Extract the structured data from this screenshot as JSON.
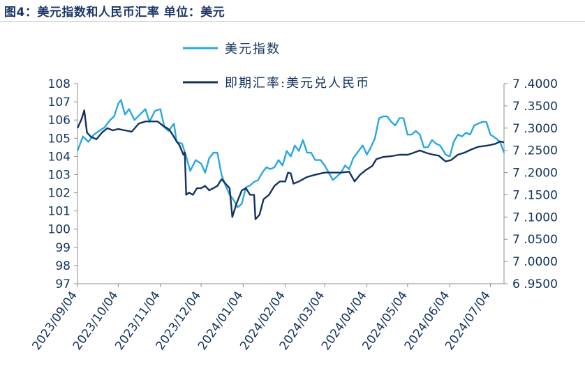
{
  "page_title": "图4：美元指数和人民币汇率 单位：美元",
  "chart_data": {
    "type": "line",
    "title": "",
    "xlabel": "",
    "ylabel": "",
    "dual_axis": true,
    "legend_placement": "top-center",
    "grid": false,
    "x_ticks": [
      "2023/09/04",
      "2023/10/04",
      "2023/11/04",
      "2023/12/04",
      "2024/01/04",
      "2024/02/04",
      "2024/03/04",
      "2024/04/04",
      "2024/05/04",
      "2024/06/04",
      "2024/07/04"
    ],
    "x_range": [
      "2023-09-04",
      "2024-07-14"
    ],
    "ylim_left": [
      97,
      108
    ],
    "y_ticks_left": [
      "97",
      "98",
      "99",
      "100",
      "101",
      "102",
      "103",
      "104",
      "105",
      "106",
      "107",
      "108"
    ],
    "ylim_right": [
      6.95,
      7.4
    ],
    "y_ticks_right": [
      "6.9500",
      "7.0000",
      "7.0500",
      "7.1000",
      "7.1500",
      "7.2000",
      "7.2500",
      "7.3000",
      "7.3500",
      "7.4000"
    ],
    "series": [
      {
        "name": "美元指数",
        "axis": "left",
        "color": "#29a8e0",
        "points": [
          [
            "2023-09-04",
            104.3
          ],
          [
            "2023-09-08",
            105.1
          ],
          [
            "2023-09-12",
            104.8
          ],
          [
            "2023-09-16",
            105.2
          ],
          [
            "2023-09-20",
            105.4
          ],
          [
            "2023-09-24",
            105.6
          ],
          [
            "2023-09-28",
            106.0
          ],
          [
            "2023-10-01",
            106.2
          ],
          [
            "2023-10-04",
            106.9
          ],
          [
            "2023-10-06",
            107.1
          ],
          [
            "2023-10-09",
            106.3
          ],
          [
            "2023-10-12",
            106.6
          ],
          [
            "2023-10-16",
            106.0
          ],
          [
            "2023-10-20",
            106.3
          ],
          [
            "2023-10-24",
            106.6
          ],
          [
            "2023-10-27",
            105.9
          ],
          [
            "2023-10-31",
            106.5
          ],
          [
            "2023-11-04",
            106.6
          ],
          [
            "2023-11-07",
            105.6
          ],
          [
            "2023-11-10",
            105.4
          ],
          [
            "2023-11-14",
            105.8
          ],
          [
            "2023-11-16",
            104.8
          ],
          [
            "2023-11-20",
            104.7
          ],
          [
            "2023-11-23",
            104.0
          ],
          [
            "2023-11-26",
            103.2
          ],
          [
            "2023-11-30",
            103.8
          ],
          [
            "2023-12-04",
            103.6
          ],
          [
            "2023-12-07",
            103.1
          ],
          [
            "2023-12-10",
            103.9
          ],
          [
            "2023-12-13",
            104.2
          ],
          [
            "2023-12-16",
            104.2
          ],
          [
            "2023-12-19",
            103.0
          ],
          [
            "2023-12-22",
            102.4
          ],
          [
            "2023-12-25",
            101.9
          ],
          [
            "2023-12-28",
            101.6
          ],
          [
            "2023-12-31",
            101.2
          ],
          [
            "2024-01-03",
            101.4
          ],
          [
            "2024-01-06",
            102.3
          ],
          [
            "2024-01-09",
            102.4
          ],
          [
            "2024-01-12",
            102.6
          ],
          [
            "2024-01-15",
            102.7
          ],
          [
            "2024-01-18",
            103.1
          ],
          [
            "2024-01-21",
            103.4
          ],
          [
            "2024-01-24",
            103.3
          ],
          [
            "2024-01-27",
            103.4
          ],
          [
            "2024-01-30",
            103.8
          ],
          [
            "2024-02-02",
            103.5
          ],
          [
            "2024-02-05",
            104.3
          ],
          [
            "2024-02-08",
            104.0
          ],
          [
            "2024-02-11",
            104.6
          ],
          [
            "2024-02-14",
            104.3
          ],
          [
            "2024-02-17",
            104.9
          ],
          [
            "2024-02-20",
            104.2
          ],
          [
            "2024-02-23",
            104.2
          ],
          [
            "2024-02-26",
            103.8
          ],
          [
            "2024-03-01",
            103.8
          ],
          [
            "2024-03-04",
            103.5
          ],
          [
            "2024-03-07",
            103.1
          ],
          [
            "2024-03-10",
            102.7
          ],
          [
            "2024-03-13",
            102.9
          ],
          [
            "2024-03-16",
            103.1
          ],
          [
            "2024-03-19",
            103.5
          ],
          [
            "2024-03-22",
            103.3
          ],
          [
            "2024-03-25",
            103.9
          ],
          [
            "2024-03-28",
            104.2
          ],
          [
            "2024-04-01",
            104.6
          ],
          [
            "2024-04-04",
            104.1
          ],
          [
            "2024-04-07",
            104.5
          ],
          [
            "2024-04-10",
            105.0
          ],
          [
            "2024-04-13",
            106.1
          ],
          [
            "2024-04-16",
            106.2
          ],
          [
            "2024-04-19",
            106.2
          ],
          [
            "2024-04-22",
            105.9
          ],
          [
            "2024-04-25",
            105.7
          ],
          [
            "2024-04-28",
            106.1
          ],
          [
            "2024-05-01",
            106.1
          ],
          [
            "2024-05-04",
            105.2
          ],
          [
            "2024-05-07",
            105.2
          ],
          [
            "2024-05-10",
            105.4
          ],
          [
            "2024-05-13",
            105.2
          ],
          [
            "2024-05-16",
            104.5
          ],
          [
            "2024-05-19",
            104.5
          ],
          [
            "2024-05-22",
            104.9
          ],
          [
            "2024-05-25",
            104.7
          ],
          [
            "2024-05-28",
            104.6
          ],
          [
            "2024-06-01",
            104.1
          ],
          [
            "2024-06-04",
            104.0
          ],
          [
            "2024-06-07",
            104.8
          ],
          [
            "2024-06-10",
            105.2
          ],
          [
            "2024-06-13",
            105.1
          ],
          [
            "2024-06-16",
            105.3
          ],
          [
            "2024-06-19",
            105.2
          ],
          [
            "2024-06-22",
            105.7
          ],
          [
            "2024-06-25",
            105.8
          ],
          [
            "2024-06-28",
            105.9
          ],
          [
            "2024-07-01",
            105.9
          ],
          [
            "2024-07-04",
            105.2
          ],
          [
            "2024-07-08",
            105.0
          ],
          [
            "2024-07-11",
            104.8
          ],
          [
            "2024-07-14",
            104.2
          ]
        ]
      },
      {
        "name": "即期汇率:美元兑人民币",
        "axis": "right",
        "color": "#14325f",
        "points": [
          [
            "2023-09-04",
            7.3
          ],
          [
            "2023-09-07",
            7.32
          ],
          [
            "2023-09-09",
            7.34
          ],
          [
            "2023-09-11",
            7.29
          ],
          [
            "2023-09-14",
            7.28
          ],
          [
            "2023-09-18",
            7.275
          ],
          [
            "2023-09-22",
            7.29
          ],
          [
            "2023-09-26",
            7.3
          ],
          [
            "2023-09-30",
            7.295
          ],
          [
            "2023-10-04",
            7.298
          ],
          [
            "2023-10-09",
            7.295
          ],
          [
            "2023-10-14",
            7.292
          ],
          [
            "2023-10-19",
            7.31
          ],
          [
            "2023-10-24",
            7.315
          ],
          [
            "2023-10-29",
            7.315
          ],
          [
            "2023-11-02",
            7.315
          ],
          [
            "2023-11-06",
            7.305
          ],
          [
            "2023-11-09",
            7.3
          ],
          [
            "2023-11-11",
            7.295
          ],
          [
            "2023-11-14",
            7.28
          ],
          [
            "2023-11-16",
            7.27
          ],
          [
            "2023-11-18",
            7.262
          ],
          [
            "2023-11-21",
            7.24
          ],
          [
            "2023-11-22",
            7.245
          ],
          [
            "2023-11-23",
            7.15
          ],
          [
            "2023-11-25",
            7.155
          ],
          [
            "2023-11-28",
            7.15
          ],
          [
            "2023-12-01",
            7.165
          ],
          [
            "2023-12-04",
            7.165
          ],
          [
            "2023-12-07",
            7.17
          ],
          [
            "2023-12-10",
            7.16
          ],
          [
            "2023-12-13",
            7.165
          ],
          [
            "2023-12-16",
            7.17
          ],
          [
            "2023-12-19",
            7.185
          ],
          [
            "2023-12-22",
            7.175
          ],
          [
            "2023-12-25",
            7.165
          ],
          [
            "2023-12-27",
            7.1
          ],
          [
            "2023-12-30",
            7.13
          ],
          [
            "2024-01-03",
            7.16
          ],
          [
            "2024-01-06",
            7.165
          ],
          [
            "2024-01-09",
            7.15
          ],
          [
            "2024-01-12",
            7.15
          ],
          [
            "2024-01-13",
            7.095
          ],
          [
            "2024-01-16",
            7.105
          ],
          [
            "2024-01-19",
            7.14
          ],
          [
            "2024-01-23",
            7.15
          ],
          [
            "2024-01-27",
            7.17
          ],
          [
            "2024-01-31",
            7.18
          ],
          [
            "2024-02-04",
            7.18
          ],
          [
            "2024-02-06",
            7.2
          ],
          [
            "2024-02-08",
            7.198
          ],
          [
            "2024-02-10",
            7.175
          ],
          [
            "2024-02-14",
            7.18
          ],
          [
            "2024-02-20",
            7.19
          ],
          [
            "2024-02-26",
            7.195
          ],
          [
            "2024-03-04",
            7.2
          ],
          [
            "2024-03-10",
            7.2
          ],
          [
            "2024-03-16",
            7.2
          ],
          [
            "2024-03-22",
            7.202
          ],
          [
            "2024-03-26",
            7.18
          ],
          [
            "2024-03-30",
            7.195
          ],
          [
            "2024-04-03",
            7.205
          ],
          [
            "2024-04-08",
            7.215
          ],
          [
            "2024-04-11",
            7.23
          ],
          [
            "2024-04-16",
            7.235
          ],
          [
            "2024-04-22",
            7.237
          ],
          [
            "2024-04-28",
            7.24
          ],
          [
            "2024-05-04",
            7.24
          ],
          [
            "2024-05-08",
            7.244
          ],
          [
            "2024-05-13",
            7.25
          ],
          [
            "2024-05-18",
            7.244
          ],
          [
            "2024-05-23",
            7.24
          ],
          [
            "2024-05-27",
            7.238
          ],
          [
            "2024-06-01",
            7.225
          ],
          [
            "2024-06-05",
            7.228
          ],
          [
            "2024-06-10",
            7.24
          ],
          [
            "2024-06-15",
            7.245
          ],
          [
            "2024-06-20",
            7.252
          ],
          [
            "2024-06-25",
            7.258
          ],
          [
            "2024-06-30",
            7.26
          ],
          [
            "2024-07-04",
            7.262
          ],
          [
            "2024-07-08",
            7.265
          ],
          [
            "2024-07-11",
            7.27
          ],
          [
            "2024-07-14",
            7.268
          ]
        ]
      }
    ]
  }
}
